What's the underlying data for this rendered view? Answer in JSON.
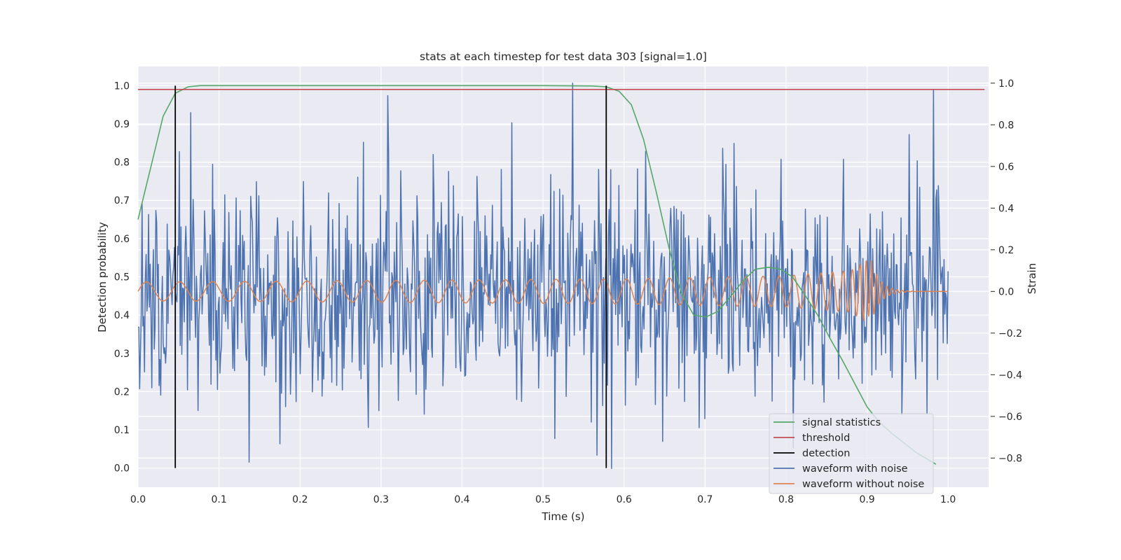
{
  "chart_data": {
    "type": "line",
    "title": "stats at each timestep for test data 303 [signal=1.0]",
    "xlabel": "Time (s)",
    "ylabel_left": "Detection probability",
    "ylabel_right": "Strain",
    "xlim": [
      0.0,
      1.05
    ],
    "ylim_left": [
      -0.05,
      1.05
    ],
    "ylim_right": [
      -0.94,
      1.08
    ],
    "x_ticks": [
      "0.0",
      "0.1",
      "0.2",
      "0.3",
      "0.4",
      "0.5",
      "0.6",
      "0.7",
      "0.8",
      "0.9",
      "1.0"
    ],
    "y_ticks_left": [
      "0.0",
      "0.1",
      "0.2",
      "0.3",
      "0.4",
      "0.5",
      "0.6",
      "0.7",
      "0.8",
      "0.9",
      "1.0"
    ],
    "y_ticks_right": [
      "−0.8",
      "−0.6",
      "−0.4",
      "−0.2",
      "0.0",
      "0.2",
      "0.4",
      "0.6",
      "0.8",
      "1.0"
    ],
    "grid": true,
    "legend_position": "lower-right",
    "series": [
      {
        "name": "signal statistics",
        "axis": "left",
        "color": "#55a868",
        "x": [
          0.0,
          0.015,
          0.031,
          0.046,
          0.062,
          0.077,
          0.1,
          0.2,
          0.3,
          0.4,
          0.5,
          0.56,
          0.578,
          0.594,
          0.609,
          0.624,
          0.64,
          0.655,
          0.67,
          0.686,
          0.701,
          0.716,
          0.732,
          0.747,
          0.762,
          0.778,
          0.793,
          0.808,
          0.824,
          0.839,
          0.854,
          0.87,
          0.885,
          0.9,
          0.915,
          0.931,
          0.946,
          0.961,
          0.977,
          0.985
        ],
        "y": [
          0.65,
          0.78,
          0.92,
          0.98,
          0.997,
          1.0,
          1.0,
          1.0,
          1.0,
          1.0,
          1.0,
          0.999,
          0.997,
          0.985,
          0.95,
          0.86,
          0.72,
          0.58,
          0.46,
          0.4,
          0.395,
          0.41,
          0.45,
          0.49,
          0.52,
          0.525,
          0.52,
          0.5,
          0.45,
          0.4,
          0.34,
          0.28,
          0.22,
          0.16,
          0.12,
          0.09,
          0.065,
          0.04,
          0.02,
          0.01
        ]
      },
      {
        "name": "threshold",
        "axis": "left",
        "color": "#c44e52",
        "x": [
          0.0,
          1.045
        ],
        "y": [
          0.99,
          0.99
        ]
      },
      {
        "name": "detection",
        "axis": "left",
        "color": "#000000",
        "segments": [
          {
            "x": 0.046,
            "y": [
              0.0,
              1.0
            ]
          },
          {
            "x": 0.578,
            "y": [
              0.0,
              1.0
            ]
          }
        ]
      },
      {
        "name": "waveform with noise",
        "axis": "right",
        "color": "#4c72b0",
        "x_start": 0.0,
        "x_end": 1.0,
        "n_points": 1000,
        "amplitude_std": 0.26,
        "y_range": [
          -0.85,
          1.0
        ],
        "extremes": [
          {
            "x": 0.537,
            "y": 1.0
          },
          {
            "x": 0.982,
            "y": 0.97
          },
          {
            "x": 0.308,
            "y": 0.94
          },
          {
            "x": 0.585,
            "y": -0.85
          },
          {
            "x": 0.137,
            "y": -0.82
          }
        ]
      },
      {
        "name": "waveform without noise",
        "axis": "right",
        "color": "#dd8452",
        "x_start": 0.0,
        "x_end": 1.0,
        "description_points": [
          {
            "x": 0.0,
            "amplitude": 0.045
          },
          {
            "x": 0.6,
            "amplitude": 0.06
          },
          {
            "x": 0.8,
            "amplitude": 0.075
          },
          {
            "x": 0.88,
            "amplitude": 0.1
          },
          {
            "x": 0.9,
            "amplitude": 0.15
          },
          {
            "x": 0.91,
            "amplitude": 0.0
          },
          {
            "x": 1.0,
            "amplitude": 0.0
          }
        ]
      }
    ]
  }
}
